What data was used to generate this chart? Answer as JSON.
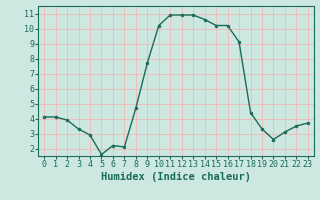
{
  "x": [
    0,
    1,
    2,
    3,
    4,
    5,
    6,
    7,
    8,
    9,
    10,
    11,
    12,
    13,
    14,
    15,
    16,
    17,
    18,
    19,
    20,
    21,
    22,
    23
  ],
  "y": [
    4.1,
    4.1,
    3.9,
    3.3,
    2.9,
    1.6,
    2.2,
    2.1,
    4.7,
    7.7,
    10.2,
    10.9,
    10.9,
    10.9,
    10.6,
    10.2,
    10.2,
    9.1,
    4.4,
    3.3,
    2.6,
    3.1,
    3.5,
    3.7
  ],
  "line_color": "#1a6b5a",
  "marker": "o",
  "markersize": 2.0,
  "linewidth": 1.0,
  "xlabel": "Humidex (Indice chaleur)",
  "xlabel_fontsize": 7.5,
  "bg_color": "#cce8e0",
  "grid_color": "#f0b8b8",
  "tick_color": "#1a6b5a",
  "axis_color": "#1a6b5a",
  "xlim": [
    -0.5,
    23.5
  ],
  "ylim": [
    1.5,
    11.5
  ],
  "yticks": [
    2,
    3,
    4,
    5,
    6,
    7,
    8,
    9,
    10,
    11
  ],
  "xticks": [
    0,
    1,
    2,
    3,
    4,
    5,
    6,
    7,
    8,
    9,
    10,
    11,
    12,
    13,
    14,
    15,
    16,
    17,
    18,
    19,
    20,
    21,
    22,
    23
  ],
  "tick_fontsize": 6.0,
  "xlabel_bold": true
}
